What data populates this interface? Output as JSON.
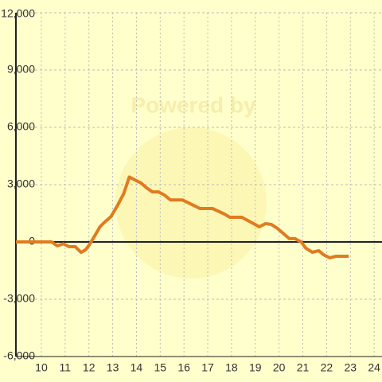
{
  "chart_data": {
    "type": "line",
    "watermark": "Powered by",
    "x": [
      8.93,
      10.43,
      10.67,
      10.93,
      11.17,
      11.43,
      11.67,
      11.87,
      12.03,
      12.27,
      12.47,
      12.7,
      12.93,
      13.2,
      13.47,
      13.7,
      13.93,
      14.2,
      14.43,
      14.67,
      14.93,
      15.17,
      15.43,
      15.93,
      16.43,
      16.67,
      17.2,
      17.7,
      17.93,
      18.43,
      18.93,
      19.17,
      19.43,
      19.67,
      19.93,
      20.2,
      20.43,
      20.67,
      20.93,
      21.13,
      21.4,
      21.67,
      21.87,
      22.13,
      22.4,
      22.93
    ],
    "series": [
      {
        "color": "#e07b20",
        "values": [
          0,
          0,
          -200,
          -100,
          -250,
          -250,
          -550,
          -400,
          -130,
          370,
          800,
          1080,
          1330,
          1900,
          2540,
          3400,
          3250,
          3080,
          2830,
          2620,
          2620,
          2460,
          2200,
          2200,
          1900,
          1750,
          1750,
          1460,
          1290,
          1290,
          960,
          790,
          960,
          920,
          710,
          420,
          170,
          170,
          0,
          -330,
          -540,
          -460,
          -670,
          -830,
          -750,
          -750
        ]
      }
    ],
    "xlim": [
      8.93,
      24.33
    ],
    "xticks": [
      10,
      11,
      12,
      13,
      14,
      15,
      16,
      17,
      18,
      19,
      20,
      21,
      22,
      23,
      24
    ],
    "ylim": [
      -6000,
      12000
    ],
    "yticks": [
      {
        "value": -6000,
        "label": "-6,000"
      },
      {
        "value": -3000,
        "label": "-3,000"
      },
      0,
      {
        "value": 3000,
        "label": "3,000"
      },
      {
        "value": 6000,
        "label": "6,000"
      },
      {
        "value": 9000,
        "label": "9,000"
      },
      {
        "value": 12000,
        "label": "12,000"
      }
    ],
    "grid": true
  }
}
